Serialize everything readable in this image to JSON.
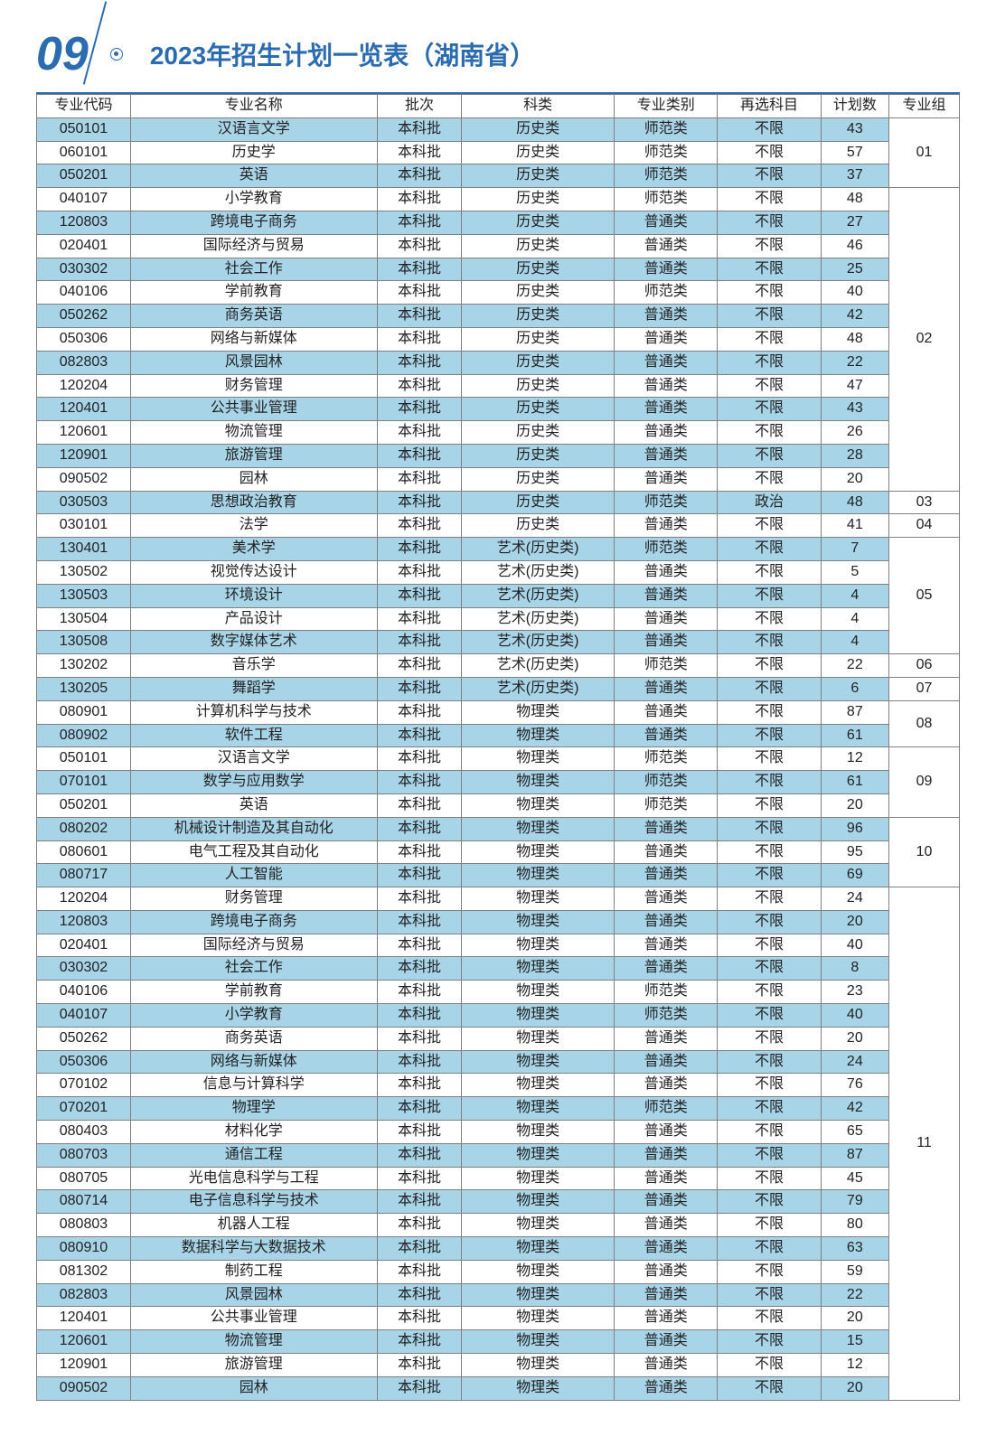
{
  "header": {
    "page_number": "09",
    "title": "2023年招生计划一览表（湖南省）"
  },
  "table": {
    "columns": [
      "专业代码",
      "专业名称",
      "批次",
      "科类",
      "专业类别",
      "再选科目",
      "计划数",
      "专业组"
    ],
    "col_keys": [
      "code",
      "name",
      "batch",
      "subject",
      "type",
      "elective",
      "count"
    ],
    "rows": [
      {
        "code": "050101",
        "name": "汉语言文学",
        "batch": "本科批",
        "subject": "历史类",
        "type": "师范类",
        "elective": "不限",
        "count": "43",
        "alt": true
      },
      {
        "code": "060101",
        "name": "历史学",
        "batch": "本科批",
        "subject": "历史类",
        "type": "师范类",
        "elective": "不限",
        "count": "57",
        "alt": false
      },
      {
        "code": "050201",
        "name": "英语",
        "batch": "本科批",
        "subject": "历史类",
        "type": "师范类",
        "elective": "不限",
        "count": "37",
        "alt": true
      },
      {
        "code": "040107",
        "name": "小学教育",
        "batch": "本科批",
        "subject": "历史类",
        "type": "师范类",
        "elective": "不限",
        "count": "48",
        "alt": false
      },
      {
        "code": "120803",
        "name": "跨境电子商务",
        "batch": "本科批",
        "subject": "历史类",
        "type": "普通类",
        "elective": "不限",
        "count": "27",
        "alt": true
      },
      {
        "code": "020401",
        "name": "国际经济与贸易",
        "batch": "本科批",
        "subject": "历史类",
        "type": "普通类",
        "elective": "不限",
        "count": "46",
        "alt": false
      },
      {
        "code": "030302",
        "name": "社会工作",
        "batch": "本科批",
        "subject": "历史类",
        "type": "普通类",
        "elective": "不限",
        "count": "25",
        "alt": true
      },
      {
        "code": "040106",
        "name": "学前教育",
        "batch": "本科批",
        "subject": "历史类",
        "type": "师范类",
        "elective": "不限",
        "count": "40",
        "alt": false
      },
      {
        "code": "050262",
        "name": "商务英语",
        "batch": "本科批",
        "subject": "历史类",
        "type": "普通类",
        "elective": "不限",
        "count": "42",
        "alt": true
      },
      {
        "code": "050306",
        "name": "网络与新媒体",
        "batch": "本科批",
        "subject": "历史类",
        "type": "普通类",
        "elective": "不限",
        "count": "48",
        "alt": false
      },
      {
        "code": "082803",
        "name": "风景园林",
        "batch": "本科批",
        "subject": "历史类",
        "type": "普通类",
        "elective": "不限",
        "count": "22",
        "alt": true
      },
      {
        "code": "120204",
        "name": "财务管理",
        "batch": "本科批",
        "subject": "历史类",
        "type": "普通类",
        "elective": "不限",
        "count": "47",
        "alt": false
      },
      {
        "code": "120401",
        "name": "公共事业管理",
        "batch": "本科批",
        "subject": "历史类",
        "type": "普通类",
        "elective": "不限",
        "count": "43",
        "alt": true
      },
      {
        "code": "120601",
        "name": "物流管理",
        "batch": "本科批",
        "subject": "历史类",
        "type": "普通类",
        "elective": "不限",
        "count": "26",
        "alt": false
      },
      {
        "code": "120901",
        "name": "旅游管理",
        "batch": "本科批",
        "subject": "历史类",
        "type": "普通类",
        "elective": "不限",
        "count": "28",
        "alt": true
      },
      {
        "code": "090502",
        "name": "园林",
        "batch": "本科批",
        "subject": "历史类",
        "type": "普通类",
        "elective": "不限",
        "count": "20",
        "alt": false
      },
      {
        "code": "030503",
        "name": "思想政治教育",
        "batch": "本科批",
        "subject": "历史类",
        "type": "师范类",
        "elective": "政治",
        "count": "48",
        "alt": true
      },
      {
        "code": "030101",
        "name": "法学",
        "batch": "本科批",
        "subject": "历史类",
        "type": "普通类",
        "elective": "不限",
        "count": "41",
        "alt": false
      },
      {
        "code": "130401",
        "name": "美术学",
        "batch": "本科批",
        "subject": "艺术(历史类)",
        "type": "师范类",
        "elective": "不限",
        "count": "7",
        "alt": true
      },
      {
        "code": "130502",
        "name": "视觉传达设计",
        "batch": "本科批",
        "subject": "艺术(历史类)",
        "type": "普通类",
        "elective": "不限",
        "count": "5",
        "alt": false
      },
      {
        "code": "130503",
        "name": "环境设计",
        "batch": "本科批",
        "subject": "艺术(历史类)",
        "type": "普通类",
        "elective": "不限",
        "count": "4",
        "alt": true
      },
      {
        "code": "130504",
        "name": "产品设计",
        "batch": "本科批",
        "subject": "艺术(历史类)",
        "type": "普通类",
        "elective": "不限",
        "count": "4",
        "alt": false
      },
      {
        "code": "130508",
        "name": "数字媒体艺术",
        "batch": "本科批",
        "subject": "艺术(历史类)",
        "type": "普通类",
        "elective": "不限",
        "count": "4",
        "alt": true
      },
      {
        "code": "130202",
        "name": "音乐学",
        "batch": "本科批",
        "subject": "艺术(历史类)",
        "type": "师范类",
        "elective": "不限",
        "count": "22",
        "alt": false
      },
      {
        "code": "130205",
        "name": "舞蹈学",
        "batch": "本科批",
        "subject": "艺术(历史类)",
        "type": "普通类",
        "elective": "不限",
        "count": "6",
        "alt": true
      },
      {
        "code": "080901",
        "name": "计算机科学与技术",
        "batch": "本科批",
        "subject": "物理类",
        "type": "普通类",
        "elective": "不限",
        "count": "87",
        "alt": false
      },
      {
        "code": "080902",
        "name": "软件工程",
        "batch": "本科批",
        "subject": "物理类",
        "type": "普通类",
        "elective": "不限",
        "count": "61",
        "alt": true
      },
      {
        "code": "050101",
        "name": "汉语言文学",
        "batch": "本科批",
        "subject": "物理类",
        "type": "师范类",
        "elective": "不限",
        "count": "12",
        "alt": false
      },
      {
        "code": "070101",
        "name": "数学与应用数学",
        "batch": "本科批",
        "subject": "物理类",
        "type": "师范类",
        "elective": "不限",
        "count": "61",
        "alt": true
      },
      {
        "code": "050201",
        "name": "英语",
        "batch": "本科批",
        "subject": "物理类",
        "type": "师范类",
        "elective": "不限",
        "count": "20",
        "alt": false
      },
      {
        "code": "080202",
        "name": "机械设计制造及其自动化",
        "batch": "本科批",
        "subject": "物理类",
        "type": "普通类",
        "elective": "不限",
        "count": "96",
        "alt": true
      },
      {
        "code": "080601",
        "name": "电气工程及其自动化",
        "batch": "本科批",
        "subject": "物理类",
        "type": "普通类",
        "elective": "不限",
        "count": "95",
        "alt": false
      },
      {
        "code": "080717",
        "name": "人工智能",
        "batch": "本科批",
        "subject": "物理类",
        "type": "普通类",
        "elective": "不限",
        "count": "69",
        "alt": true
      },
      {
        "code": "120204",
        "name": "财务管理",
        "batch": "本科批",
        "subject": "物理类",
        "type": "普通类",
        "elective": "不限",
        "count": "24",
        "alt": false
      },
      {
        "code": "120803",
        "name": "跨境电子商务",
        "batch": "本科批",
        "subject": "物理类",
        "type": "普通类",
        "elective": "不限",
        "count": "20",
        "alt": true
      },
      {
        "code": "020401",
        "name": "国际经济与贸易",
        "batch": "本科批",
        "subject": "物理类",
        "type": "普通类",
        "elective": "不限",
        "count": "40",
        "alt": false
      },
      {
        "code": "030302",
        "name": "社会工作",
        "batch": "本科批",
        "subject": "物理类",
        "type": "普通类",
        "elective": "不限",
        "count": "8",
        "alt": true
      },
      {
        "code": "040106",
        "name": "学前教育",
        "batch": "本科批",
        "subject": "物理类",
        "type": "师范类",
        "elective": "不限",
        "count": "23",
        "alt": false
      },
      {
        "code": "040107",
        "name": "小学教育",
        "batch": "本科批",
        "subject": "物理类",
        "type": "师范类",
        "elective": "不限",
        "count": "40",
        "alt": true
      },
      {
        "code": "050262",
        "name": "商务英语",
        "batch": "本科批",
        "subject": "物理类",
        "type": "普通类",
        "elective": "不限",
        "count": "20",
        "alt": false
      },
      {
        "code": "050306",
        "name": "网络与新媒体",
        "batch": "本科批",
        "subject": "物理类",
        "type": "普通类",
        "elective": "不限",
        "count": "24",
        "alt": true
      },
      {
        "code": "070102",
        "name": "信息与计算科学",
        "batch": "本科批",
        "subject": "物理类",
        "type": "普通类",
        "elective": "不限",
        "count": "76",
        "alt": false
      },
      {
        "code": "070201",
        "name": "物理学",
        "batch": "本科批",
        "subject": "物理类",
        "type": "师范类",
        "elective": "不限",
        "count": "42",
        "alt": true
      },
      {
        "code": "080403",
        "name": "材料化学",
        "batch": "本科批",
        "subject": "物理类",
        "type": "普通类",
        "elective": "不限",
        "count": "65",
        "alt": false
      },
      {
        "code": "080703",
        "name": "通信工程",
        "batch": "本科批",
        "subject": "物理类",
        "type": "普通类",
        "elective": "不限",
        "count": "87",
        "alt": true
      },
      {
        "code": "080705",
        "name": "光电信息科学与工程",
        "batch": "本科批",
        "subject": "物理类",
        "type": "普通类",
        "elective": "不限",
        "count": "45",
        "alt": false
      },
      {
        "code": "080714",
        "name": "电子信息科学与技术",
        "batch": "本科批",
        "subject": "物理类",
        "type": "普通类",
        "elective": "不限",
        "count": "79",
        "alt": true
      },
      {
        "code": "080803",
        "name": "机器人工程",
        "batch": "本科批",
        "subject": "物理类",
        "type": "普通类",
        "elective": "不限",
        "count": "80",
        "alt": false
      },
      {
        "code": "080910",
        "name": "数据科学与大数据技术",
        "batch": "本科批",
        "subject": "物理类",
        "type": "普通类",
        "elective": "不限",
        "count": "63",
        "alt": true
      },
      {
        "code": "081302",
        "name": "制药工程",
        "batch": "本科批",
        "subject": "物理类",
        "type": "普通类",
        "elective": "不限",
        "count": "59",
        "alt": false
      },
      {
        "code": "082803",
        "name": "风景园林",
        "batch": "本科批",
        "subject": "物理类",
        "type": "普通类",
        "elective": "不限",
        "count": "22",
        "alt": true
      },
      {
        "code": "120401",
        "name": "公共事业管理",
        "batch": "本科批",
        "subject": "物理类",
        "type": "普通类",
        "elective": "不限",
        "count": "20",
        "alt": false
      },
      {
        "code": "120601",
        "name": "物流管理",
        "batch": "本科批",
        "subject": "物理类",
        "type": "普通类",
        "elective": "不限",
        "count": "15",
        "alt": true
      },
      {
        "code": "120901",
        "name": "旅游管理",
        "batch": "本科批",
        "subject": "物理类",
        "type": "普通类",
        "elective": "不限",
        "count": "12",
        "alt": false
      },
      {
        "code": "090502",
        "name": "园林",
        "batch": "本科批",
        "subject": "物理类",
        "type": "普通类",
        "elective": "不限",
        "count": "20",
        "alt": true
      }
    ],
    "groups": [
      {
        "start": 0,
        "span": 3,
        "label": "01"
      },
      {
        "start": 3,
        "span": 13,
        "label": "02"
      },
      {
        "start": 16,
        "span": 1,
        "label": "03"
      },
      {
        "start": 17,
        "span": 1,
        "label": "04"
      },
      {
        "start": 18,
        "span": 5,
        "label": "05"
      },
      {
        "start": 23,
        "span": 1,
        "label": "06"
      },
      {
        "start": 24,
        "span": 1,
        "label": "07"
      },
      {
        "start": 25,
        "span": 2,
        "label": "08"
      },
      {
        "start": 27,
        "span": 3,
        "label": "09"
      },
      {
        "start": 30,
        "span": 3,
        "label": "10"
      },
      {
        "start": 33,
        "span": 22,
        "label": "11"
      }
    ]
  },
  "styling": {
    "accent_color": "#2b6cb0",
    "alt_row_bg": "#a8d4e8",
    "border_color": "#808080",
    "background": "#ffffff",
    "body_font_size": 16,
    "title_font_size": 28,
    "page_num_font_size": 52
  }
}
